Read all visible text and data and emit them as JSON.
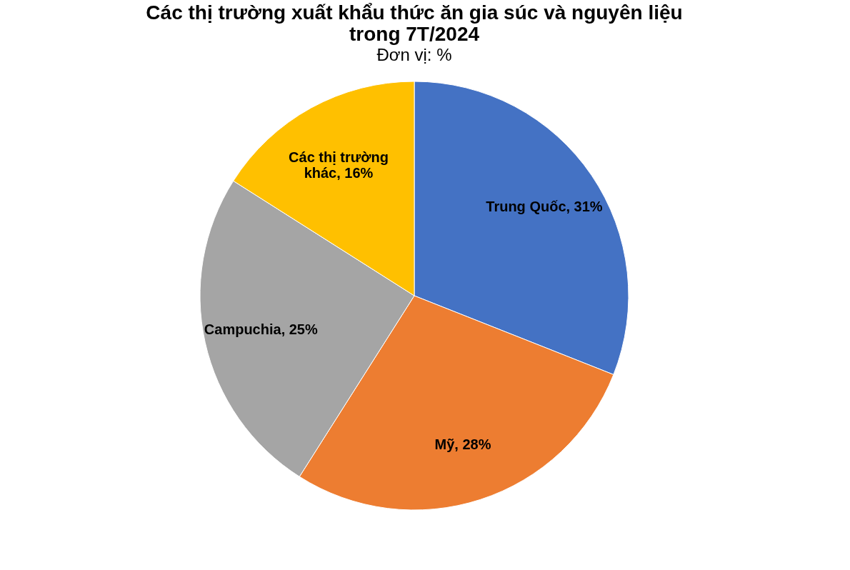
{
  "chart_data": {
    "type": "pie",
    "title": "Các thị trường xuất khẩu thức ăn gia súc và nguyên liệu trong 7T/2024",
    "subtitle": "Đơn vị: %",
    "categories": [
      "Trung Quốc",
      "Mỹ",
      "Campuchia",
      "Các thị trường khác"
    ],
    "values": [
      31,
      28,
      25,
      16
    ],
    "colors": [
      "#4472c4",
      "#ed7d31",
      "#a5a5a5",
      "#ffc000"
    ],
    "value_labels": [
      "31%",
      "28%",
      "25%",
      "16%"
    ],
    "legend": false
  }
}
